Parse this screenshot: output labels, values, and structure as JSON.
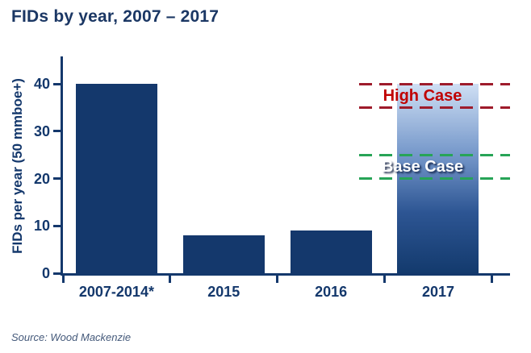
{
  "header": {
    "title": "FIDs by year, 2007 – 2017"
  },
  "footer": {
    "source": "Source: Wood Mackenzie"
  },
  "colors": {
    "title_navy": "#1b3764",
    "axis_navy": "#14386c",
    "bar_navy": "#14386c",
    "source_text": "#44597a",
    "gradient_top": "#cfdff4",
    "gradient_mid1": "#7396c9",
    "gradient_mid2": "#2d5593",
    "gradient_bottom": "#133a6d",
    "high_case_line": "#9e1b2b",
    "high_case_text": "#c00000",
    "base_case_line": "#27a457",
    "base_case_text": "#ffffff"
  },
  "chart_data": {
    "type": "bar",
    "title": "FIDs by year, 2007 – 2017",
    "categories": [
      "2007-2014*",
      "2015",
      "2016",
      "2017"
    ],
    "values": [
      40,
      8,
      9,
      40
    ],
    "xlabel": "",
    "ylabel": "FIDs per year (50 mmboe+)",
    "ylim": [
      0,
      40
    ],
    "yticks": [
      0,
      10,
      20,
      30,
      40
    ],
    "grid": false,
    "legend_position": "none",
    "bar_styles": [
      "solid",
      "solid",
      "solid",
      "gradient"
    ],
    "annotations": [
      {
        "label": "High Case",
        "type": "dashed-range",
        "y_top": 40,
        "y_bottom": 35,
        "line_color_key": "high_case_line",
        "text_color_key": "high_case_text",
        "shadow": false
      },
      {
        "label": "Base Case",
        "type": "dashed-range",
        "y_top": 25,
        "y_bottom": 20,
        "line_color_key": "base_case_line",
        "text_color_key": "base_case_text",
        "shadow": true
      }
    ]
  }
}
